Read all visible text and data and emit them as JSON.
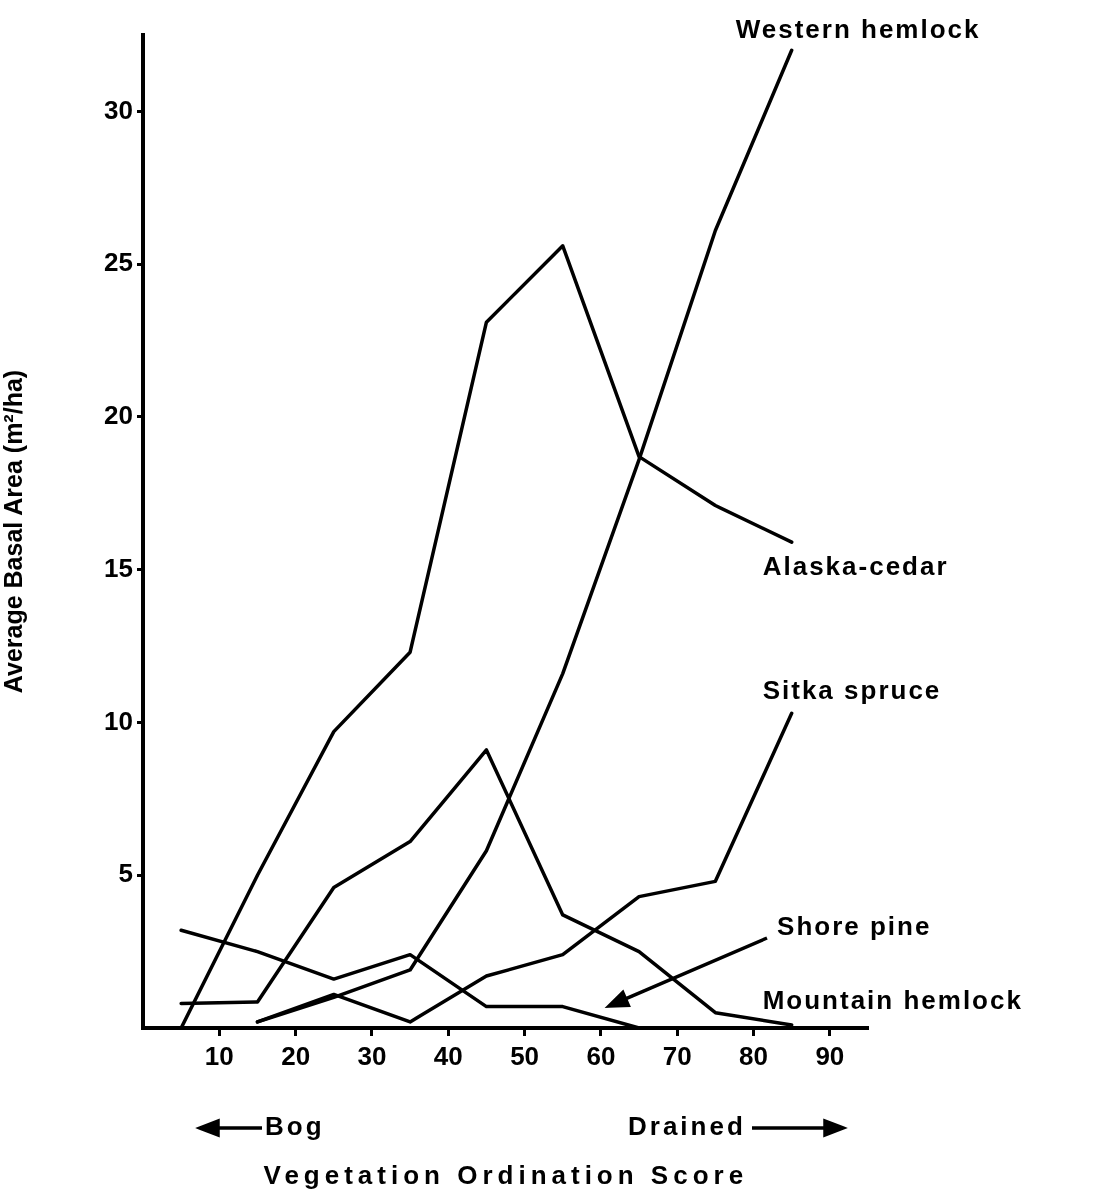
{
  "chart_data": {
    "type": "line",
    "xlabel": "Vegetation Ordination Score",
    "ylabel": "Average Basal Area (m²/ha)",
    "x": [
      5,
      15,
      25,
      35,
      45,
      55,
      65,
      75,
      85
    ],
    "series": [
      {
        "name": "Western hemlock",
        "color": "#000000",
        "values": [
          null,
          0.2,
          1.0,
          1.9,
          5.8,
          11.6,
          18.6,
          26.1,
          32.0
        ]
      },
      {
        "name": "Alaska-cedar",
        "color": "#000000",
        "values": [
          0,
          5.0,
          9.7,
          12.3,
          23.1,
          25.6,
          18.7,
          17.1,
          15.9
        ]
      },
      {
        "name": "Sitka spruce",
        "color": "#000000",
        "values": [
          null,
          0.2,
          1.1,
          0.2,
          1.7,
          2.4,
          4.3,
          4.8,
          10.3
        ]
      },
      {
        "name": "Shore pine",
        "color": "#000000",
        "values": [
          3.2,
          2.5,
          1.6,
          2.4,
          0.7,
          0.7,
          0,
          null,
          null
        ]
      },
      {
        "name": "Mountain hemlock",
        "color": "#000000",
        "values": [
          0.8,
          0.85,
          4.6,
          6.1,
          9.1,
          3.7,
          2.5,
          0.5,
          0.1
        ]
      }
    ],
    "xlim": [
      0,
      95
    ],
    "ylim": [
      0,
      32.5
    ],
    "xticks": [
      10,
      20,
      30,
      40,
      50,
      60,
      70,
      80,
      90
    ],
    "yticks": [
      5,
      10,
      15,
      20,
      25,
      30
    ],
    "annotations": [
      "Bog",
      "Drained"
    ],
    "grid": false,
    "legend": false,
    "marker": "none",
    "line_style": "solid"
  }
}
